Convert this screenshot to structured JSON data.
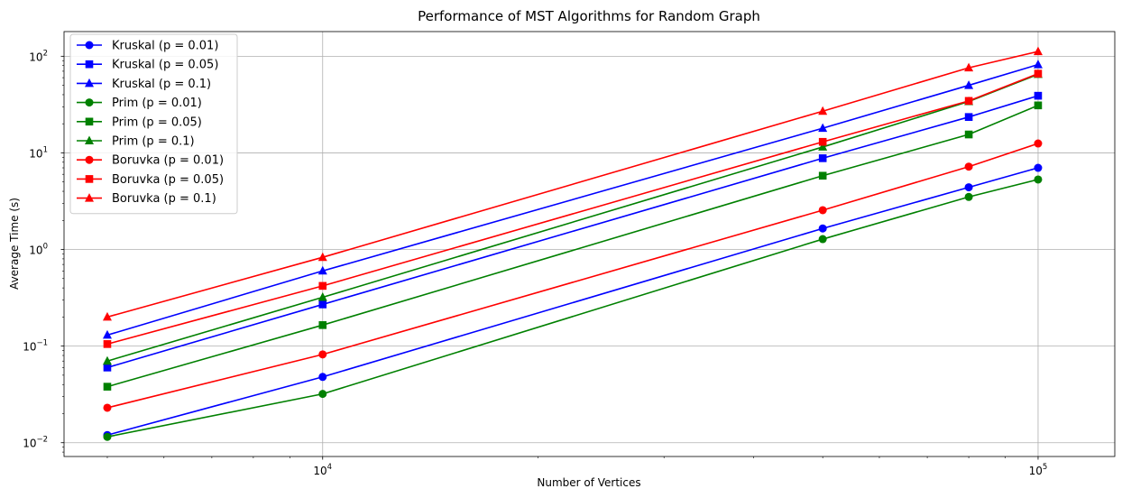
{
  "chart_data": {
    "type": "line",
    "title": "Performance of MST Algorithms for Random Graph",
    "xlabel": "Number of Vertices",
    "ylabel": "Average Time (s)",
    "xscale": "log",
    "yscale": "log",
    "xlim": [
      4350,
      128000
    ],
    "ylim": [
      0.0072,
      180
    ],
    "grid": true,
    "legend_position": "upper-left",
    "x": [
      5000,
      10000,
      50000,
      80000,
      100000
    ],
    "x_ticks": [
      {
        "value": 10000,
        "base": "10",
        "exp": "4"
      },
      {
        "value": 100000,
        "base": "10",
        "exp": "5"
      }
    ],
    "y_ticks": [
      {
        "value": 0.01,
        "base": "10",
        "exp": "−2"
      },
      {
        "value": 0.1,
        "base": "10",
        "exp": "−1"
      },
      {
        "value": 1,
        "base": "10",
        "exp": "0"
      },
      {
        "value": 10,
        "base": "10",
        "exp": "1"
      },
      {
        "value": 100,
        "base": "10",
        "exp": "2"
      }
    ],
    "series": [
      {
        "name": "Kruskal (p = 0.01)",
        "color": "#0000ff",
        "marker": "circle",
        "values": [
          0.012,
          0.048,
          1.65,
          4.4,
          7.0
        ]
      },
      {
        "name": "Kruskal (p = 0.05)",
        "color": "#0000ff",
        "marker": "square",
        "values": [
          0.06,
          0.27,
          8.8,
          23.5,
          39
        ]
      },
      {
        "name": "Kruskal (p = 0.1)",
        "color": "#0000ff",
        "marker": "triangle",
        "values": [
          0.13,
          0.6,
          18,
          50,
          82
        ]
      },
      {
        "name": "Prim (p = 0.01)",
        "color": "#008000",
        "marker": "circle",
        "values": [
          0.0115,
          0.032,
          1.28,
          3.5,
          5.3
        ]
      },
      {
        "name": "Prim (p = 0.05)",
        "color": "#008000",
        "marker": "square",
        "values": [
          0.038,
          0.165,
          5.8,
          15.5,
          31
        ]
      },
      {
        "name": "Prim (p = 0.1)",
        "color": "#008000",
        "marker": "triangle",
        "values": [
          0.07,
          0.32,
          11.5,
          34,
          65
        ]
      },
      {
        "name": "Boruvka (p = 0.01)",
        "color": "#ff0000",
        "marker": "circle",
        "values": [
          0.023,
          0.082,
          2.55,
          7.2,
          12.5
        ]
      },
      {
        "name": "Boruvka (p = 0.05)",
        "color": "#ff0000",
        "marker": "square",
        "values": [
          0.105,
          0.42,
          13,
          34.5,
          66
        ]
      },
      {
        "name": "Boruvka (p = 0.1)",
        "color": "#ff0000",
        "marker": "triangle",
        "values": [
          0.2,
          0.83,
          27,
          76,
          112
        ]
      }
    ]
  }
}
